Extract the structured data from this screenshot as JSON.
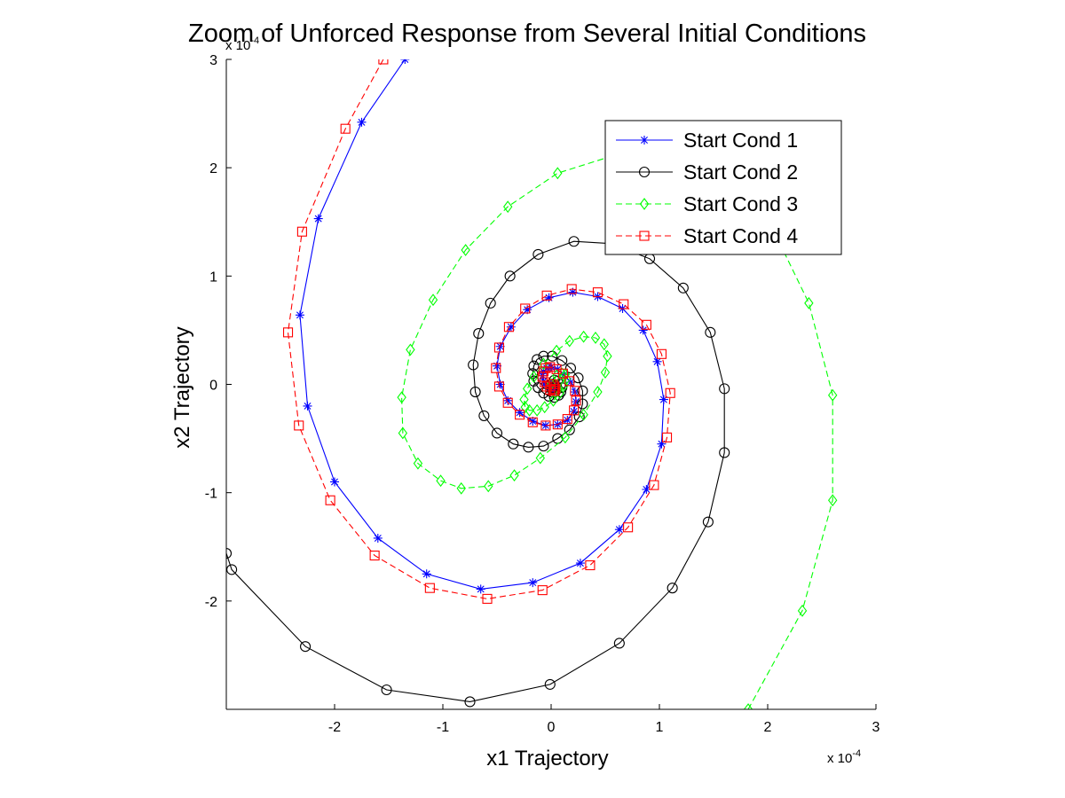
{
  "chart_data": {
    "type": "line",
    "title": "Zoom of Unforced Response from Several Initial Conditions",
    "xlabel": "x1 Trajectory",
    "ylabel": "x2 Trajectory",
    "x_multiplier": "x 10",
    "x_multiplier_exp": "-4",
    "y_multiplier": "x 10",
    "y_multiplier_exp": "-4",
    "xlim": [
      -3,
      3
    ],
    "ylim": [
      -3,
      3
    ],
    "xticks": [
      "-2",
      "-1",
      "0",
      "1",
      "2",
      "3"
    ],
    "yticks": [
      "3",
      "2",
      "1",
      "0",
      "-1",
      "-2"
    ],
    "grid": false,
    "legend_position": "top-right",
    "series": [
      {
        "name": "Start Cond 1",
        "color": "#0000ff",
        "dash": "solid",
        "marker": "star",
        "x": [
          -1.35,
          -1.75,
          -2.15,
          -2.32,
          -2.25,
          -2.0,
          -1.6,
          -1.15,
          -0.65,
          -0.17,
          0.27,
          0.63,
          0.88,
          1.02,
          1.04,
          0.98,
          0.85,
          0.66,
          0.43,
          0.2,
          -0.02,
          -0.22,
          -0.37,
          -0.47,
          -0.5,
          -0.47,
          -0.4,
          -0.29,
          -0.17,
          -0.05,
          0.06,
          0.15,
          0.21,
          0.23,
          0.22,
          0.18,
          0.12,
          0.06,
          0,
          -0.04,
          -0.07,
          -0.08,
          -0.07,
          -0.05,
          -0.02,
          0.01,
          0.03,
          0.04,
          0.04,
          0.03,
          0.02,
          0.01,
          0.0
        ],
        "y": [
          3.0,
          2.42,
          1.53,
          0.64,
          -0.2,
          -0.9,
          -1.42,
          -1.75,
          -1.89,
          -1.83,
          -1.65,
          -1.34,
          -0.97,
          -0.55,
          -0.14,
          0.21,
          0.5,
          0.7,
          0.81,
          0.85,
          0.8,
          0.69,
          0.53,
          0.35,
          0.17,
          0.0,
          -0.15,
          -0.26,
          -0.34,
          -0.38,
          -0.37,
          -0.33,
          -0.25,
          -0.16,
          -0.07,
          0.02,
          0.09,
          0.14,
          0.16,
          0.15,
          0.12,
          0.08,
          0.03,
          -0.01,
          -0.04,
          -0.06,
          -0.06,
          -0.05,
          -0.03,
          -0.01,
          0.0,
          0.01,
          0.0
        ]
      },
      {
        "name": "Start Cond 2",
        "color": "#000000",
        "dash": "solid",
        "marker": "circle",
        "x": [
          -3.0,
          -2.95,
          -2.27,
          -1.52,
          -0.75,
          -0.01,
          0.63,
          1.12,
          1.45,
          1.6,
          1.6,
          1.47,
          1.22,
          0.91,
          0.55,
          0.21,
          -0.12,
          -0.38,
          -0.56,
          -0.67,
          -0.72,
          -0.7,
          -0.62,
          -0.5,
          -0.35,
          -0.21,
          -0.07,
          0.06,
          0.17,
          0.26,
          0.29,
          0.29,
          0.25,
          0.18,
          0.1,
          0.01,
          -0.07,
          -0.13,
          -0.16,
          -0.17,
          -0.16,
          -0.12,
          -0.07,
          -0.02,
          0.03,
          0.07,
          0.09,
          0.1,
          0.09,
          0.06,
          0.03,
          0.0
        ],
        "y": [
          -1.56,
          -1.71,
          -2.42,
          -2.82,
          -2.93,
          -2.77,
          -2.39,
          -1.88,
          -1.27,
          -0.63,
          -0.04,
          0.48,
          0.89,
          1.16,
          1.3,
          1.32,
          1.2,
          1.0,
          0.75,
          0.47,
          0.18,
          -0.07,
          -0.29,
          -0.45,
          -0.55,
          -0.58,
          -0.57,
          -0.5,
          -0.42,
          -0.3,
          -0.18,
          -0.06,
          0.06,
          0.15,
          0.22,
          0.26,
          0.26,
          0.23,
          0.17,
          0.1,
          0.03,
          -0.03,
          -0.08,
          -0.11,
          -0.12,
          -0.1,
          -0.07,
          -0.03,
          0.0,
          0.03,
          0.04,
          0.0
        ]
      },
      {
        "name": "Start Cond 3",
        "color": "#00ff00",
        "dash": "dashed",
        "marker": "diamond",
        "x": [
          1.82,
          2.32,
          2.6,
          2.6,
          2.38,
          2.04,
          1.6,
          1.08,
          0.57,
          0.06,
          -0.4,
          -0.79,
          -1.09,
          -1.3,
          -1.38,
          -1.37,
          -1.23,
          -1.02,
          -0.83,
          -0.58,
          -0.34,
          -0.1,
          0.13,
          0.3,
          0.43,
          0.5,
          0.52,
          0.49,
          0.41,
          0.3,
          0.17,
          0.05,
          -0.07,
          -0.16,
          -0.22,
          -0.25,
          -0.24,
          -0.2,
          -0.13,
          -0.06,
          0.02,
          0.08,
          0.12,
          0.14,
          0.13,
          0.1,
          0.05,
          0.0
        ],
        "y": [
          -3.0,
          -2.09,
          -1.07,
          -0.1,
          0.75,
          1.45,
          1.95,
          2.2,
          2.11,
          1.95,
          1.64,
          1.24,
          0.78,
          0.32,
          -0.12,
          -0.45,
          -0.73,
          -0.89,
          -0.96,
          -0.94,
          -0.84,
          -0.68,
          -0.49,
          -0.28,
          -0.07,
          0.11,
          0.26,
          0.37,
          0.43,
          0.44,
          0.4,
          0.31,
          0.19,
          0.07,
          -0.04,
          -0.14,
          -0.21,
          -0.24,
          -0.24,
          -0.21,
          -0.15,
          -0.08,
          -0.01,
          0.05,
          0.09,
          0.1,
          0.08,
          0.0
        ]
      },
      {
        "name": "Start Cond 4",
        "color": "#ff0000",
        "dash": "dashed",
        "marker": "square",
        "x": [
          -1.55,
          -1.9,
          -2.3,
          -2.43,
          -2.33,
          -2.04,
          -1.63,
          -1.12,
          -0.59,
          -0.08,
          0.36,
          0.71,
          0.95,
          1.07,
          1.1,
          1.02,
          0.88,
          0.67,
          0.43,
          0.19,
          -0.04,
          -0.24,
          -0.39,
          -0.48,
          -0.51,
          -0.48,
          -0.4,
          -0.29,
          -0.17,
          -0.05,
          0.06,
          0.15,
          0.21,
          0.23,
          0.22,
          0.17,
          0.11,
          0.05,
          -0.01,
          -0.05,
          -0.07,
          -0.08,
          -0.06,
          -0.04,
          -0.01,
          0.02,
          0.03,
          0.04,
          0.03,
          0.02,
          0.0
        ],
        "y": [
          3.0,
          2.36,
          1.41,
          0.48,
          -0.38,
          -1.07,
          -1.58,
          -1.88,
          -1.98,
          -1.9,
          -1.67,
          -1.32,
          -0.93,
          -0.49,
          -0.08,
          0.28,
          0.55,
          0.74,
          0.85,
          0.88,
          0.82,
          0.7,
          0.53,
          0.34,
          0.15,
          -0.02,
          -0.17,
          -0.28,
          -0.35,
          -0.38,
          -0.37,
          -0.32,
          -0.24,
          -0.15,
          -0.06,
          0.03,
          0.1,
          0.14,
          0.16,
          0.15,
          0.12,
          0.07,
          0.02,
          -0.02,
          -0.05,
          -0.06,
          -0.06,
          -0.04,
          -0.02,
          0.0,
          0.0
        ]
      }
    ]
  }
}
